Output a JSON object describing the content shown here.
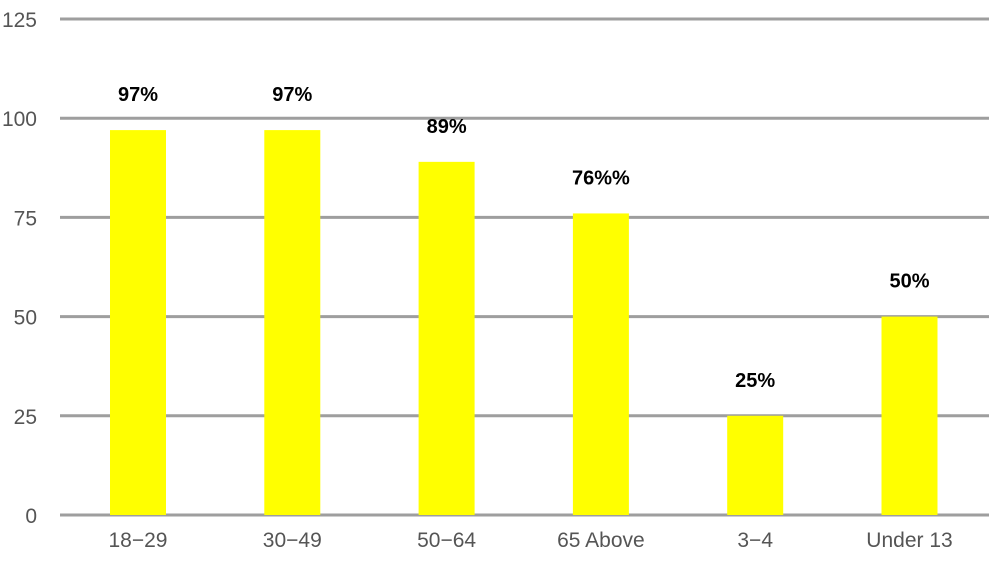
{
  "chart_data": {
    "type": "bar",
    "categories": [
      "18−29",
      "30−49",
      "50−64",
      "65 Above",
      "3−4",
      "Under 13"
    ],
    "values": [
      97,
      97,
      89,
      76,
      25,
      50
    ],
    "data_labels": [
      "97%",
      "97%",
      "89%",
      "76%%",
      "25%",
      "50%"
    ],
    "yticks": [
      "0",
      "25",
      "50",
      "75",
      "100",
      "125"
    ],
    "ylim": [
      0,
      125
    ],
    "grid": true,
    "legend": "none",
    "bar_color": "#ffff00",
    "grid_color": "#9e9e9e",
    "tick_color": "#555555",
    "label_color": "#000000"
  }
}
